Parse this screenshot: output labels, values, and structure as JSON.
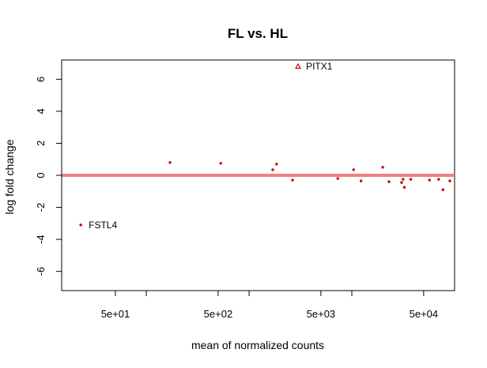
{
  "chart_data": {
    "type": "scatter",
    "title": "FL vs. HL",
    "xlabel": "mean of normalized counts",
    "ylabel": "log fold change",
    "x_scale": "log10",
    "xlim": [
      15,
      100000
    ],
    "ylim": [
      -7.2,
      7.2
    ],
    "x_ticks": [
      {
        "value": 50,
        "label": "5e+01"
      },
      {
        "value": 500,
        "label": "5e+02"
      },
      {
        "value": 5000,
        "label": "5e+03"
      },
      {
        "value": 50000,
        "label": "5e+04"
      }
    ],
    "x_minor_ticks": [
      100,
      1000,
      10000
    ],
    "y_ticks": [
      {
        "value": -6,
        "label": "-6"
      },
      {
        "value": -4,
        "label": "-4"
      },
      {
        "value": -2,
        "label": "-2"
      },
      {
        "value": 0,
        "label": "0"
      },
      {
        "value": 2,
        "label": "2"
      },
      {
        "value": 4,
        "label": "4"
      },
      {
        "value": 6,
        "label": "6"
      }
    ],
    "reference_line": {
      "y": 0,
      "color": "#f08080"
    },
    "point_color": "#cc0000",
    "grid": false,
    "points": [
      {
        "x": 23,
        "y": -3.1,
        "label": "FSTL4"
      },
      {
        "x": 170,
        "y": 0.8
      },
      {
        "x": 530,
        "y": 0.75
      },
      {
        "x": 1700,
        "y": 0.35
      },
      {
        "x": 1850,
        "y": 0.7
      },
      {
        "x": 2650,
        "y": -0.3
      },
      {
        "x": 7300,
        "y": -0.2
      },
      {
        "x": 10400,
        "y": 0.35
      },
      {
        "x": 12300,
        "y": -0.35
      },
      {
        "x": 20000,
        "y": 0.5
      },
      {
        "x": 23000,
        "y": -0.4
      },
      {
        "x": 30500,
        "y": -0.45
      },
      {
        "x": 31500,
        "y": -0.25
      },
      {
        "x": 32500,
        "y": -0.75
      },
      {
        "x": 37500,
        "y": -0.25
      },
      {
        "x": 57000,
        "y": -0.3
      },
      {
        "x": 70000,
        "y": -0.25
      },
      {
        "x": 77000,
        "y": -0.9
      },
      {
        "x": 90000,
        "y": -0.35
      }
    ],
    "outliers": [
      {
        "x": 3000,
        "y": 6.8,
        "label": "PITX1",
        "marker": "triangle-open"
      }
    ]
  }
}
